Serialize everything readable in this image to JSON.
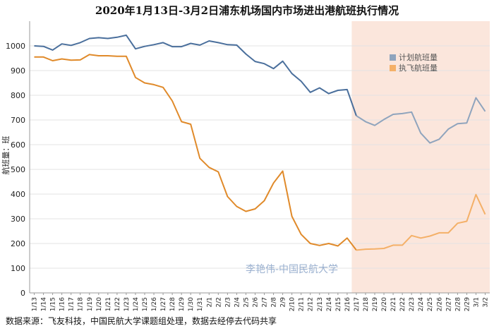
{
  "chart_data": {
    "type": "line",
    "title": "2020年1月13日-3月2日浦东机场国内市场进出港航班执行情况",
    "ylabel": "航班量：班",
    "xlabel": "",
    "ylim": [
      0,
      1100
    ],
    "yticks": [
      0,
      100,
      200,
      300,
      400,
      500,
      600,
      700,
      800,
      900,
      1000
    ],
    "categories": [
      "1/13",
      "1/14",
      "1/15",
      "1/16",
      "1/17",
      "1/18",
      "1/19",
      "1/20",
      "1/21",
      "1/22",
      "1/23",
      "1/24",
      "1/25",
      "1/26",
      "1/27",
      "1/28",
      "1/29",
      "1/30",
      "1/31",
      "2/1",
      "2/2",
      "2/3",
      "2/4",
      "2/5",
      "2/6",
      "2/7",
      "2/8",
      "2/9",
      "2/10",
      "2/11",
      "2/12",
      "2/13",
      "2/14",
      "2/15",
      "2/16",
      "2/17",
      "2/18",
      "2/19",
      "2/20",
      "2/21",
      "2/22",
      "2/23",
      "2/24",
      "2/25",
      "2/26",
      "2/27",
      "2/28",
      "2/29",
      "3/1",
      "3/2"
    ],
    "highlight_start": "2/17",
    "series": [
      {
        "name": "计划航班量",
        "color": "#4a6f9c",
        "future_color": "#8fa4bd",
        "values": [
          1000,
          998,
          983,
          1008,
          1002,
          1013,
          1030,
          1033,
          1030,
          1035,
          1043,
          988,
          998,
          1005,
          1013,
          997,
          997,
          1010,
          1003,
          1020,
          1013,
          1005,
          1003,
          967,
          937,
          928,
          908,
          938,
          888,
          857,
          812,
          830,
          807,
          820,
          823,
          717,
          693,
          678,
          702,
          723,
          726,
          732,
          647,
          607,
          622,
          663,
          685,
          688,
          790,
          735
        ]
      },
      {
        "name": "执飞航班量",
        "color": "#e08a2a",
        "future_color": "#f4b068",
        "values": [
          955,
          955,
          940,
          947,
          942,
          943,
          965,
          960,
          960,
          958,
          958,
          872,
          850,
          843,
          832,
          777,
          693,
          683,
          545,
          508,
          490,
          390,
          350,
          330,
          340,
          373,
          445,
          493,
          310,
          237,
          200,
          192,
          200,
          190,
          222,
          173,
          177,
          178,
          180,
          193,
          193,
          232,
          222,
          230,
          243,
          243,
          282,
          290,
          398,
          318
        ]
      }
    ],
    "legend": [
      "计划航班量",
      "执飞航班量"
    ],
    "legend_position": "right",
    "watermark": "李艳伟-中国民航大学",
    "source": "数据来源：飞友科技，中国民航大学课题组处理，数据去经停去代码共享"
  },
  "colors": {
    "highlight_band": "#fbe6dc",
    "grid": "#e3e3e3",
    "axis": "#999999",
    "watermark": "#9ab0cf"
  }
}
